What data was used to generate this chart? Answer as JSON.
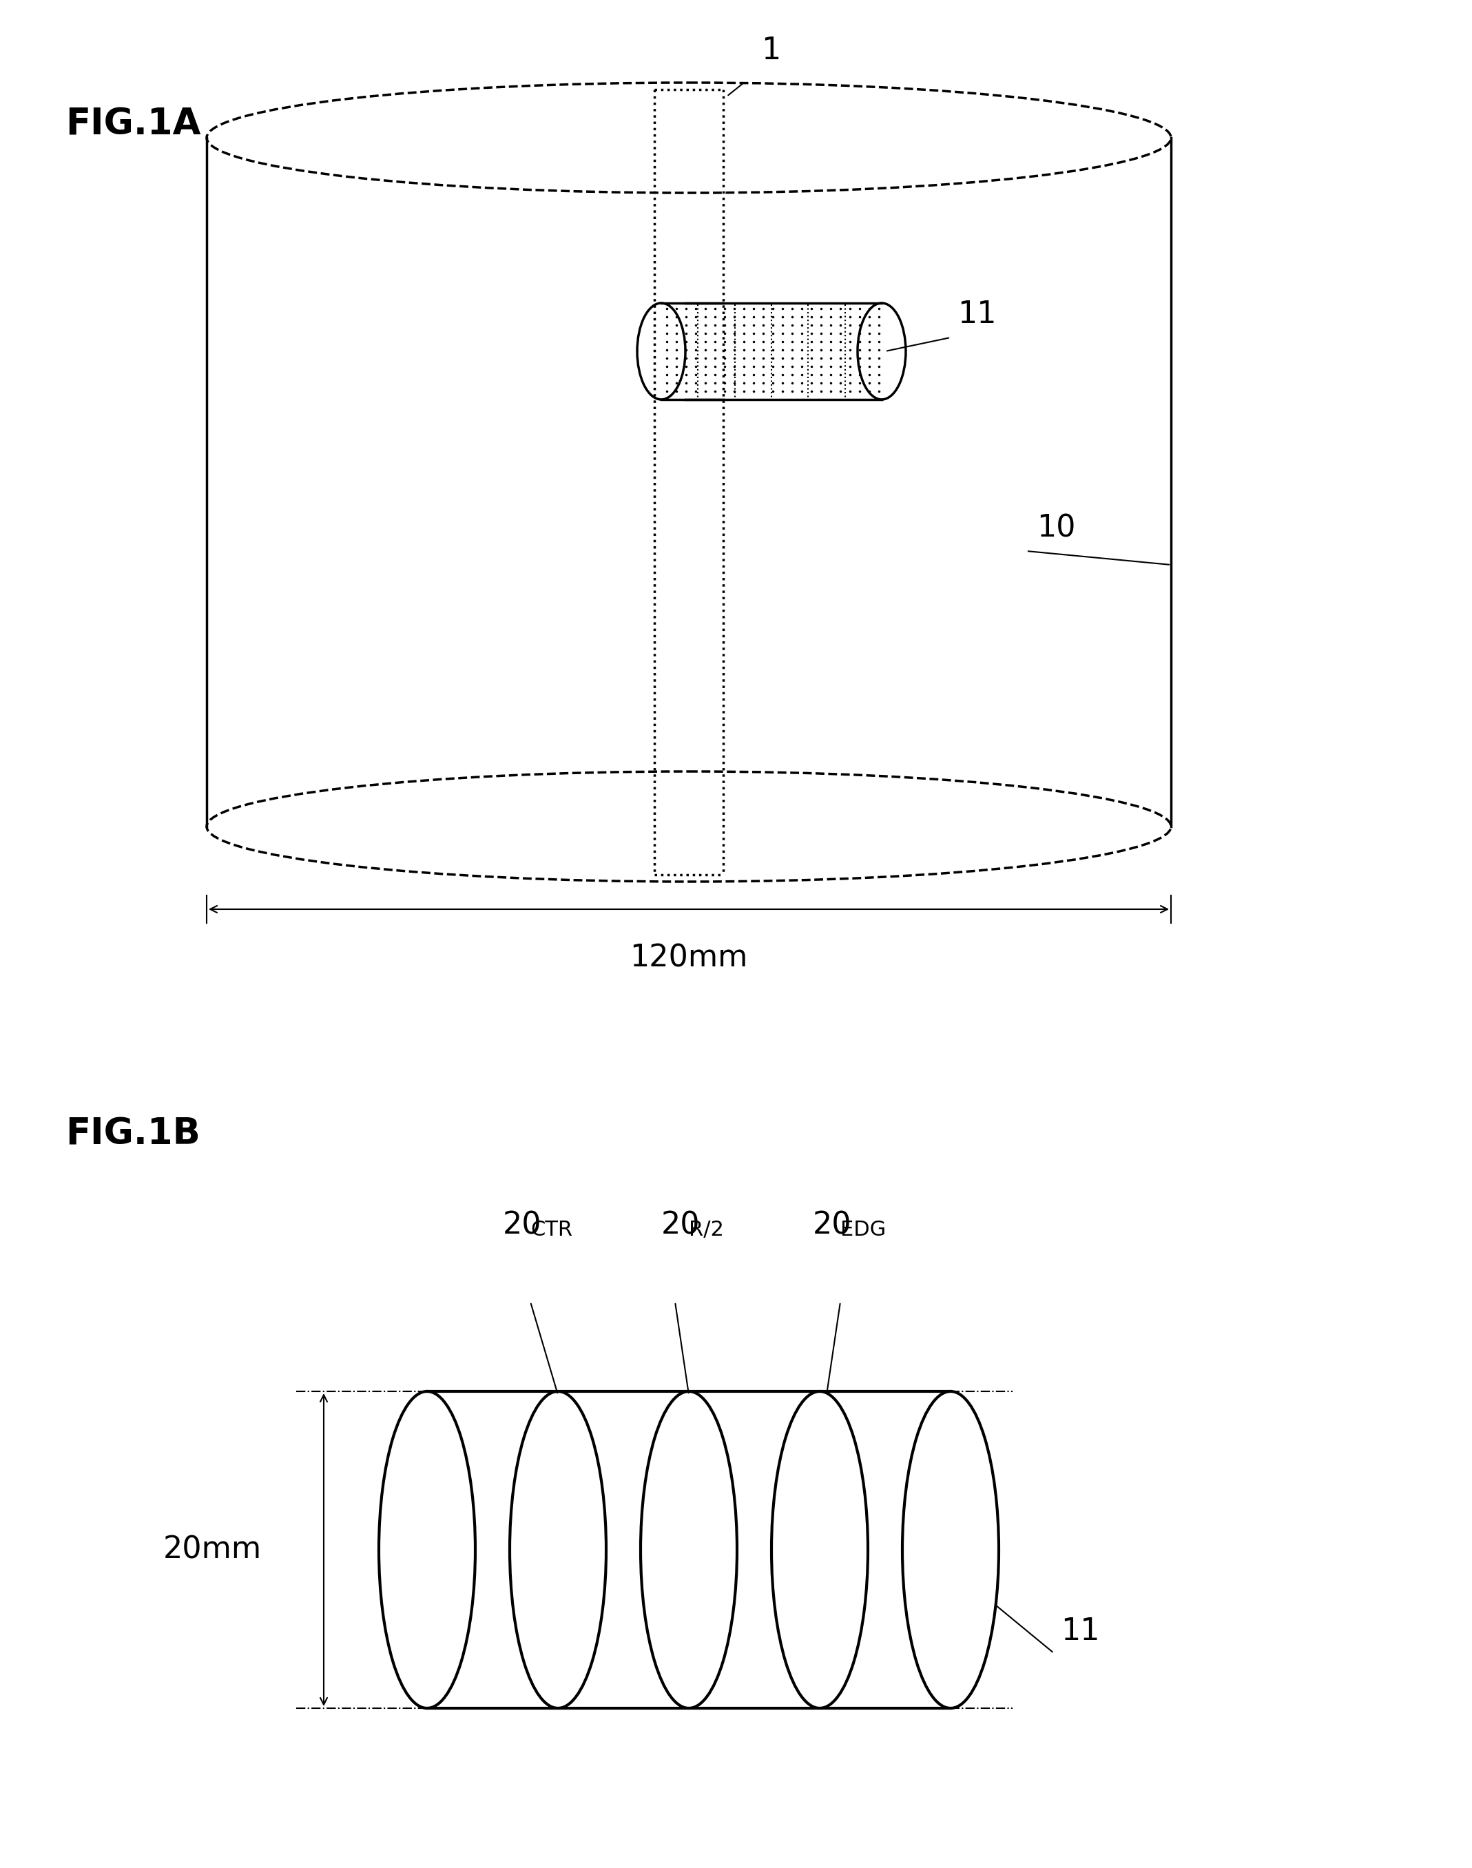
{
  "fig1a_label": "FIG.1A",
  "fig1b_label": "FIG.1B",
  "label_1": "1",
  "label_10": "10",
  "label_11_a": "11",
  "label_11_b": "11",
  "label_120mm": "120mm",
  "label_20mm": "20mm",
  "label_20ctr": "20",
  "label_ctr": "CTR",
  "label_20r2": "20",
  "label_r2": "R/2",
  "label_20edg": "20",
  "label_edg": "EDG",
  "bg_color": "#ffffff",
  "line_color": "#000000",
  "dashed_color": "#000000",
  "dotted_color": "#000000"
}
